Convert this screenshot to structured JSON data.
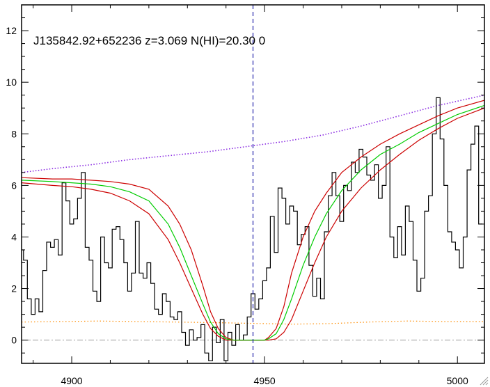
{
  "chart_data": {
    "type": "line",
    "title": "J135842.92+652236 z=3.069 N(HI)=20.30 0",
    "xlabel": "",
    "ylabel": "",
    "xlim": [
      4887,
      5007
    ],
    "ylim": [
      -0.9,
      13.0
    ],
    "x_ticks": [
      4900,
      4950,
      5000
    ],
    "x_tick_labels": [
      "4900",
      "4950",
      "5000"
    ],
    "y_ticks": [
      0,
      2,
      4,
      6,
      8,
      10,
      12
    ],
    "y_tick_labels": [
      "0",
      "2",
      "4",
      "6",
      "8",
      "10",
      "12"
    ],
    "grid": false,
    "legend": "none",
    "line_center_x": 4947.0,
    "zero_line_y": 0,
    "colors": {
      "flux": "#000000",
      "model": "#00cc00",
      "model_bounds": "#cc0000",
      "continuum": "#8a2be2",
      "error": "#ff8c00",
      "line_center": "#1f1faa",
      "zero_line": "#999999"
    },
    "series": [
      {
        "style": "step",
        "x": [
          4887,
          4888,
          4889,
          4890,
          4891,
          4892,
          4893,
          4894,
          4895,
          4896,
          4897,
          4898,
          4899,
          4900,
          4901,
          4902,
          4903,
          4904,
          4905,
          4906,
          4907,
          4908,
          4909,
          4910,
          4911,
          4912,
          4913,
          4914,
          4915,
          4916,
          4917,
          4918,
          4919,
          4920,
          4921,
          4922,
          4923,
          4924,
          4925,
          4926,
          4927,
          4928,
          4929,
          4930,
          4931,
          4932,
          4933,
          4934,
          4935,
          4936,
          4937,
          4938,
          4939,
          4940,
          4941,
          4942,
          4943,
          4944,
          4945,
          4946,
          4947,
          4948,
          4949,
          4950,
          4951,
          4952,
          4953,
          4954,
          4955,
          4956,
          4957,
          4958,
          4959,
          4960,
          4961,
          4962,
          4963,
          4964,
          4965,
          4966,
          4967,
          4968,
          4969,
          4970,
          4971,
          4972,
          4973,
          4974,
          4975,
          4976,
          4977,
          4978,
          4979,
          4980,
          4981,
          4982,
          4983,
          4984,
          4985,
          4986,
          4987,
          4988,
          4989,
          4990,
          4991,
          4992,
          4993,
          4994,
          4995,
          4996,
          4997,
          4998,
          4999,
          5000,
          5001,
          5002,
          5003,
          5004,
          5005,
          5006
        ],
        "y": [
          3.5,
          3.1,
          1.6,
          1.0,
          1.6,
          1.1,
          2.7,
          3.8,
          3.6,
          3.9,
          3.3,
          6.1,
          5.4,
          4.5,
          4.7,
          5.5,
          6.5,
          3.6,
          3.1,
          1.9,
          1.5,
          4.0,
          3.0,
          2.8,
          4.3,
          4.4,
          3.9,
          3.0,
          1.9,
          2.6,
          4.6,
          2.6,
          2.4,
          3.0,
          2.2,
          1.2,
          1.0,
          1.8,
          1.5,
          0.9,
          0.8,
          1.1,
          0.3,
          -0.2,
          0.4,
          0.0,
          0.1,
          0.6,
          -0.5,
          -0.8,
          0.5,
          -0.1,
          0.8,
          -0.8,
          0.3,
          -0.2,
          0.6,
          0.0,
          0.2,
          0.9,
          1.8,
          1.2,
          1.6,
          2.3,
          2.8,
          4.8,
          3.4,
          5.9,
          5.5,
          4.5,
          5.2,
          5.0,
          3.7,
          4.1,
          4.4,
          2.9,
          1.7,
          2.4,
          1.6,
          4.2,
          5.6,
          6.5,
          5.6,
          4.6,
          6.0,
          5.8,
          6.9,
          6.5,
          7.4,
          7.1,
          6.4,
          6.2,
          6.8,
          5.5,
          6.0,
          7.5,
          4.0,
          3.2,
          4.4,
          3.3,
          5.2,
          4.6,
          3.1,
          1.9,
          2.4,
          5.0,
          5.6,
          8.0,
          9.4,
          7.8,
          6.0,
          4.2,
          3.8,
          3.5,
          2.8,
          4.0,
          6.6,
          7.6,
          8.3,
          4.5
        ]
      },
      {
        "style": "line",
        "x": [
          4887,
          4895,
          4900,
          4905,
          4910,
          4915,
          4920,
          4925,
          4928,
          4931,
          4934,
          4936,
          4938,
          4940,
          4942,
          4944,
          4946,
          4948,
          4950,
          4951,
          4953,
          4955,
          4957,
          4960,
          4963,
          4966,
          4970,
          4975,
          4980,
          4985,
          4990,
          4995,
          5000,
          5007
        ],
        "y": [
          6.2,
          6.15,
          6.1,
          6.05,
          5.95,
          5.75,
          5.4,
          4.5,
          3.6,
          2.5,
          1.4,
          0.7,
          0.25,
          0.05,
          0.0,
          0.0,
          0.0,
          0.0,
          0.0,
          0.05,
          0.25,
          0.8,
          1.6,
          2.9,
          4.0,
          4.9,
          5.8,
          6.6,
          7.2,
          7.6,
          8.05,
          8.4,
          8.75,
          9.1
        ]
      },
      {
        "style": "line",
        "x": [
          4887,
          4895,
          4900,
          4905,
          4910,
          4915,
          4920,
          4925,
          4928,
          4931,
          4934,
          4936,
          4938,
          4940,
          4942,
          4944,
          4946,
          4948,
          4950,
          4951,
          4953,
          4955,
          4957,
          4960,
          4963,
          4966,
          4970,
          4975,
          4980,
          4985,
          4990,
          4995,
          5000,
          5007
        ],
        "y": [
          6.3,
          6.25,
          6.25,
          6.2,
          6.15,
          6.05,
          5.85,
          5.2,
          4.5,
          3.5,
          2.1,
          1.1,
          0.45,
          0.1,
          0.0,
          0.0,
          0.0,
          0.0,
          0.0,
          0.1,
          0.45,
          1.3,
          2.6,
          4.0,
          5.0,
          5.7,
          6.5,
          7.1,
          7.6,
          8.0,
          8.35,
          8.7,
          9.0,
          9.3
        ]
      },
      {
        "style": "line",
        "x": [
          4887,
          4895,
          4900,
          4905,
          4910,
          4915,
          4920,
          4925,
          4928,
          4931,
          4934,
          4936,
          4938,
          4940,
          4942,
          4944,
          4946,
          4948,
          4950,
          4951,
          4953,
          4955,
          4957,
          4960,
          4963,
          4966,
          4970,
          4975,
          4980,
          4985,
          4990,
          4995,
          5000,
          5007
        ],
        "y": [
          6.1,
          6.0,
          5.95,
          5.85,
          5.7,
          5.4,
          4.9,
          3.9,
          3.0,
          2.0,
          1.0,
          0.45,
          0.15,
          0.0,
          0.0,
          0.0,
          0.0,
          0.0,
          0.0,
          0.0,
          0.05,
          0.3,
          0.8,
          1.9,
          3.0,
          4.0,
          5.0,
          5.9,
          6.6,
          7.2,
          7.75,
          8.2,
          8.6,
          9.0
        ]
      },
      {
        "style": "dotted",
        "x": [
          4887,
          4895,
          4905,
          4915,
          4925,
          4935,
          4945,
          4955,
          4965,
          4975,
          4985,
          4995,
          5007
        ],
        "y": [
          6.5,
          6.65,
          6.8,
          7.0,
          7.15,
          7.3,
          7.5,
          7.7,
          7.95,
          8.3,
          8.7,
          9.1,
          9.5
        ]
      },
      {
        "style": "dotted",
        "x": [
          4887,
          4897,
          4907,
          4917,
          4927,
          4937,
          4947,
          4957,
          4967,
          4977,
          4987,
          4997,
          5007
        ],
        "y": [
          0.7,
          0.72,
          0.74,
          0.72,
          0.7,
          0.68,
          0.65,
          0.62,
          0.64,
          0.7,
          0.74,
          0.72,
          0.72
        ]
      }
    ]
  }
}
